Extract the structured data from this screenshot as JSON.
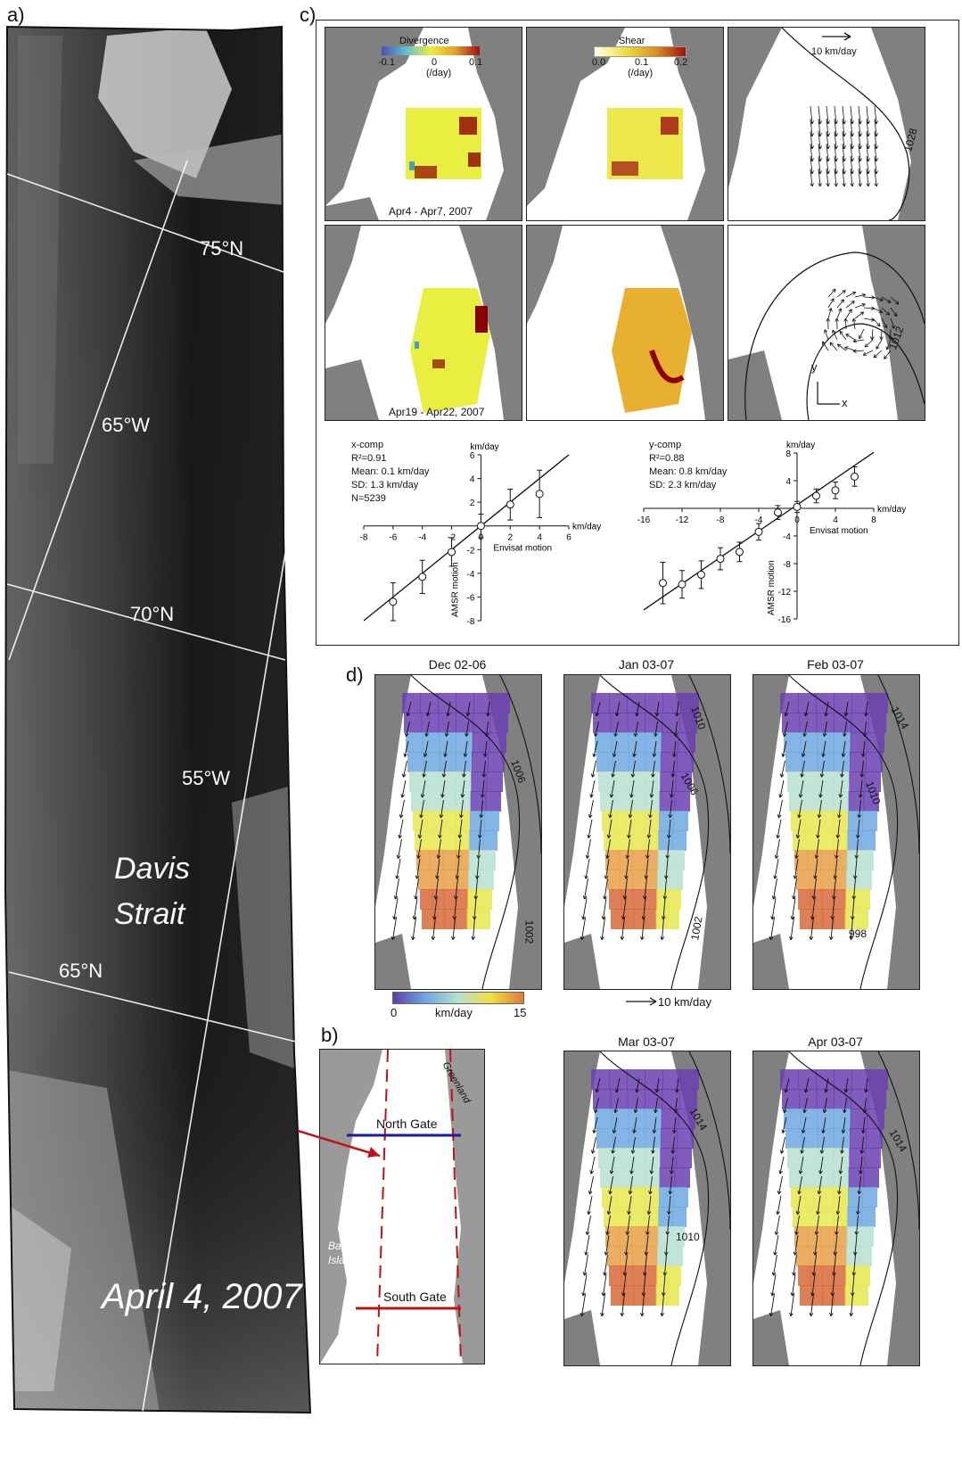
{
  "panel_a": {
    "label": "a)",
    "lat_labels": [
      "75°N",
      "70°N",
      "65°N"
    ],
    "lon_labels": [
      "65°W",
      "55°W"
    ],
    "place": "Davis Strait",
    "place_line1": "Davis",
    "place_line2": "Strait",
    "date": "April 4, 2007"
  },
  "panel_b": {
    "label": "b)",
    "north_gate": "North Gate",
    "south_gate": "South Gate",
    "greenland": "Greenland",
    "baffin1": "Baffin",
    "baffin2": "Island"
  },
  "panel_c": {
    "label": "c)",
    "divergence_title": "Divergence",
    "divergence_ticks": [
      "-0.1",
      "0",
      "0.1"
    ],
    "shear_title": "Shear",
    "shear_ticks": [
      "0.0",
      "0.1",
      "0.2"
    ],
    "unit": "(/day)",
    "vector_scale": "10 km/day",
    "period1": "Apr4 - Apr7, 2007",
    "period2": "Apr19 - Apr22, 2007",
    "isobar1": "1028",
    "isobar2": "1012",
    "axis_y": "y",
    "axis_x": "x",
    "xcomp": {
      "name": "x-comp",
      "r2": "R²=0.91",
      "mean": "Mean: 0.1 km/day",
      "sd": "SD: 1.3 km/day",
      "n": "N=5239",
      "yunit": "km/day",
      "xunit": "km/day",
      "xlabel": "Envisat motion",
      "ylabel": "AMSR motion",
      "xticks": [
        "-8",
        "-6",
        "-4",
        "-2",
        "0",
        "2",
        "4",
        "6"
      ],
      "yticks": [
        "6",
        "4",
        "2",
        "0",
        "-2",
        "-4",
        "-6",
        "-8"
      ]
    },
    "ycomp": {
      "name": "y-comp",
      "r2": "R²=0.88",
      "mean": "Mean: 0.8 km/day",
      "sd": "SD: 2.3 km/day",
      "yunit": "km/day",
      "xunit": "km/day",
      "xlabel": "Envisat motion",
      "ylabel": "AMSR motion",
      "xticks": [
        "-16",
        "-12",
        "-8",
        "-4",
        "0",
        "4",
        "8"
      ],
      "yticks": [
        "8",
        "4",
        "0",
        "-4",
        "-8",
        "-12",
        "-16"
      ]
    }
  },
  "panel_d": {
    "label": "d)",
    "maps": [
      {
        "title": "Dec 02-06",
        "isobars": [
          "1006",
          "1002"
        ]
      },
      {
        "title": "Jan 03-07",
        "isobars": [
          "1010",
          "1006",
          "1002"
        ]
      },
      {
        "title": "Feb 03-07",
        "isobars": [
          "1014",
          "1010",
          "998"
        ]
      },
      {
        "title": "Mar 03-07",
        "isobars": [
          "1014",
          "1010"
        ]
      },
      {
        "title": "Apr 03-07",
        "isobars": [
          "1014"
        ]
      }
    ],
    "colorbar_min": "0",
    "colorbar_unit": "km/day",
    "colorbar_max": "15",
    "vector_scale": "10 km/day"
  },
  "chart_data": [
    {
      "type": "scatter",
      "title": "x-comp",
      "xlabel": "Envisat motion",
      "ylabel": "AMSR motion",
      "xlim": [
        -8,
        6
      ],
      "ylim": [
        -8,
        6
      ],
      "points": [
        {
          "x": -6,
          "y": -6.4,
          "err": 1.6
        },
        {
          "x": -4,
          "y": -4.3,
          "err": 1.4
        },
        {
          "x": -2,
          "y": -2.2,
          "err": 1.2
        },
        {
          "x": 0,
          "y": 0.0,
          "err": 1.0
        },
        {
          "x": 2,
          "y": 1.8,
          "err": 1.3
        },
        {
          "x": 4,
          "y": 2.7,
          "err": 2.0
        }
      ],
      "fit": {
        "slope": 1.0,
        "intercept": 0.0
      }
    },
    {
      "type": "scatter",
      "title": "y-comp",
      "xlabel": "Envisat motion",
      "ylabel": "AMSR motion",
      "xlim": [
        -16,
        8
      ],
      "ylim": [
        -16,
        8
      ],
      "points": [
        {
          "x": -14,
          "y": -10.8,
          "err": 3.0
        },
        {
          "x": -12,
          "y": -11.0,
          "err": 2.0
        },
        {
          "x": -10,
          "y": -9.6,
          "err": 2.0
        },
        {
          "x": -8,
          "y": -7.3,
          "err": 1.6
        },
        {
          "x": -6,
          "y": -6.3,
          "err": 1.4
        },
        {
          "x": -4,
          "y": -3.4,
          "err": 1.2
        },
        {
          "x": -2,
          "y": -0.6,
          "err": 1.0
        },
        {
          "x": 0,
          "y": 0.2,
          "err": 0.8
        },
        {
          "x": 2,
          "y": 1.8,
          "err": 1.0
        },
        {
          "x": 4,
          "y": 2.6,
          "err": 1.2
        },
        {
          "x": 6,
          "y": 4.6,
          "err": 1.4
        }
      ],
      "fit": {
        "slope": 0.95,
        "intercept": 0.5
      }
    }
  ]
}
